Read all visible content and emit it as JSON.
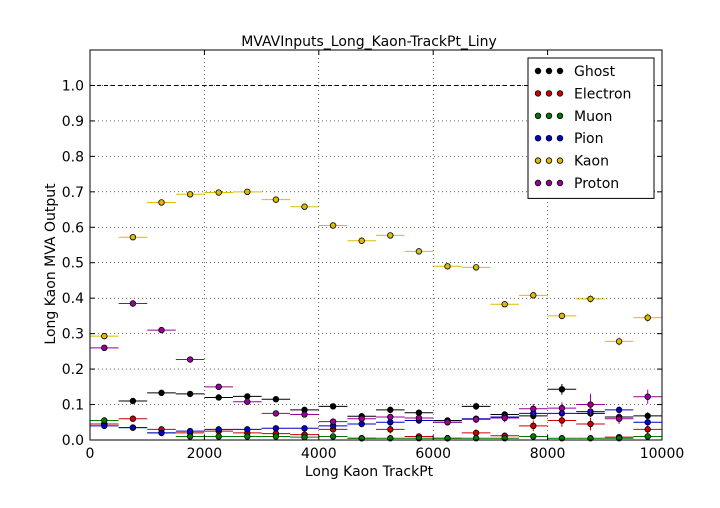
{
  "chart_data": {
    "type": "scatter",
    "title": "MVAVInputs_Long_Kaon-TrackPt_Liny",
    "xlabel": "Long Kaon TrackPt",
    "ylabel": "Long Kaon MVA Output",
    "xlim": [
      0,
      10000
    ],
    "ylim": [
      0,
      1.1
    ],
    "xticks": [
      0,
      2000,
      4000,
      6000,
      8000,
      10000
    ],
    "xtick_labels": [
      "0",
      "2000",
      "4000",
      "6000",
      "8000",
      "10000"
    ],
    "yticks": [
      0.0,
      0.1,
      0.2,
      0.3,
      0.4,
      0.5,
      0.6,
      0.7,
      0.8,
      0.9,
      1.0
    ],
    "ytick_labels": [
      "0.0",
      "0.1",
      "0.2",
      "0.3",
      "0.4",
      "0.5",
      "0.6",
      "0.7",
      "0.8",
      "0.9",
      "1.0"
    ],
    "grid": true,
    "reference_line": 1.0,
    "legend_position": "top-right",
    "bin_halfwidth": 250,
    "x": [
      250,
      750,
      1250,
      1750,
      2250,
      2750,
      3250,
      3750,
      4250,
      4750,
      5250,
      5750,
      6250,
      6750,
      7250,
      7750,
      8250,
      8750,
      9250,
      9750
    ],
    "series": [
      {
        "name": "Ghost",
        "color": "#000000",
        "values": [
          0.045,
          0.11,
          0.133,
          0.13,
          0.12,
          0.123,
          0.115,
          0.085,
          0.095,
          0.067,
          0.085,
          0.077,
          0.055,
          0.095,
          0.072,
          0.068,
          0.143,
          0.075,
          0.065,
          0.068
        ],
        "errors": [
          0.005,
          0.005,
          0.005,
          0.005,
          0.005,
          0.008,
          0.006,
          0.006,
          0.005,
          0.006,
          0.008,
          0.008,
          0.007,
          0.01,
          0.008,
          0.01,
          0.015,
          0.01,
          0.008,
          0.01
        ]
      },
      {
        "name": "Electron",
        "color": "#cc0000",
        "values": [
          0.045,
          0.06,
          0.03,
          0.02,
          0.025,
          0.02,
          0.018,
          0.015,
          0.03,
          0.005,
          0.03,
          0.01,
          0.005,
          0.02,
          0.012,
          0.04,
          0.055,
          0.045,
          0.008,
          0.03
        ],
        "errors": [
          0.005,
          0.008,
          0.006,
          0.005,
          0.005,
          0.005,
          0.005,
          0.005,
          0.008,
          0.004,
          0.012,
          0.006,
          0.004,
          0.01,
          0.008,
          0.015,
          0.018,
          0.018,
          0.006,
          0.012
        ]
      },
      {
        "name": "Muon",
        "color": "#007700",
        "values": [
          0.055,
          0.035,
          0.02,
          0.01,
          0.01,
          0.01,
          0.01,
          0.008,
          0.01,
          0.005,
          0.005,
          0.005,
          0.005,
          0.005,
          0.005,
          0.01,
          0.005,
          0.005,
          0.005,
          0.01
        ],
        "errors": [
          0.004,
          0.004,
          0.004,
          0.003,
          0.003,
          0.003,
          0.003,
          0.003,
          0.003,
          0.003,
          0.003,
          0.003,
          0.003,
          0.003,
          0.003,
          0.004,
          0.003,
          0.003,
          0.003,
          0.004
        ]
      },
      {
        "name": "Pion",
        "color": "#0000cc",
        "values": [
          0.04,
          0.035,
          0.02,
          0.025,
          0.03,
          0.03,
          0.033,
          0.033,
          0.04,
          0.045,
          0.05,
          0.055,
          0.05,
          0.06,
          0.065,
          0.075,
          0.075,
          0.08,
          0.085,
          0.05
        ],
        "errors": [
          0.003,
          0.003,
          0.003,
          0.003,
          0.003,
          0.003,
          0.003,
          0.003,
          0.004,
          0.004,
          0.005,
          0.005,
          0.005,
          0.006,
          0.006,
          0.007,
          0.008,
          0.008,
          0.009,
          0.008
        ]
      },
      {
        "name": "Kaon",
        "color": "#ddbb00",
        "values": [
          0.293,
          0.572,
          0.67,
          0.693,
          0.698,
          0.7,
          0.678,
          0.658,
          0.605,
          0.562,
          0.577,
          0.532,
          0.49,
          0.487,
          0.383,
          0.408,
          0.35,
          0.398,
          0.278,
          0.345
        ],
        "errors": [
          0.005,
          0.004,
          0.003,
          0.003,
          0.003,
          0.003,
          0.003,
          0.004,
          0.004,
          0.005,
          0.005,
          0.006,
          0.006,
          0.007,
          0.008,
          0.009,
          0.01,
          0.011,
          0.012,
          0.013
        ]
      },
      {
        "name": "Proton",
        "color": "#990099",
        "values": [
          0.26,
          0.385,
          0.31,
          0.227,
          0.15,
          0.108,
          0.075,
          0.072,
          0.052,
          0.06,
          0.065,
          0.062,
          0.05,
          0.058,
          0.062,
          0.088,
          0.09,
          0.1,
          0.06,
          0.122
        ],
        "errors": [
          0.005,
          0.005,
          0.005,
          0.005,
          0.005,
          0.005,
          0.005,
          0.005,
          0.006,
          0.007,
          0.008,
          0.008,
          0.009,
          0.01,
          0.012,
          0.014,
          0.016,
          0.03,
          0.015,
          0.02
        ]
      }
    ]
  }
}
